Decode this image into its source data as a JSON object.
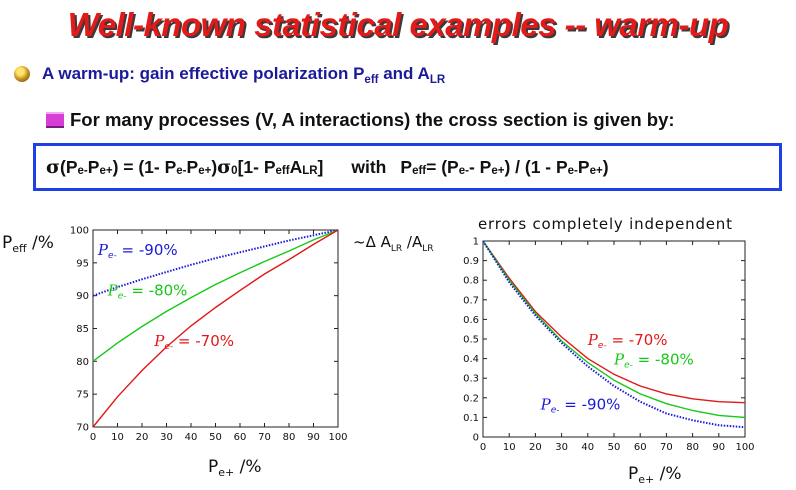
{
  "title": "Well-known statistical examples -- warm-up",
  "bullet1": {
    "icon": "gold-ball-bullet-icon",
    "text": "A warm-up: gain effective polarization P",
    "sub1": "eff",
    "mid": " and A",
    "sub2": "LR"
  },
  "bullet2": {
    "icon": "magenta-bar-bullet-icon",
    "text": "For many processes (V, A interactions) the cross section is given by:"
  },
  "formula": {
    "sigma": "σ",
    "p1": "(P",
    "s1": "e-",
    "p2": " P",
    "s2": "e+",
    "p3": ") = (1- P",
    "s3": "e-",
    "p4": " P",
    "s4": "e+",
    "p5": " ) ",
    "sigma0": "σ",
    "s0": "0",
    "p6": " [1- P",
    "s5": "eff",
    "p7": " A",
    "s6": "LR",
    "p8": "]",
    "with": "with",
    "q1": "P",
    "t1": "eff",
    "q2": " = (P",
    "t2": "e-",
    "q3": " - P",
    "t3": "e+",
    "q4": ") / (1 - P",
    "t4": "e-",
    "q5": " P",
    "t5": "e+",
    "q6": " )"
  },
  "chart_data": [
    {
      "type": "line",
      "ylabel": "Peff /%",
      "xlabel": "Pe+ /%",
      "xlim": [
        0,
        100
      ],
      "ylim": [
        70,
        100
      ],
      "xticks": [
        0,
        10,
        20,
        30,
        40,
        50,
        60,
        70,
        80,
        90,
        100
      ],
      "yticks": [
        70,
        75,
        80,
        85,
        90,
        95,
        100
      ],
      "series": [
        {
          "name": "Pe- = -90%",
          "color": "#1a1ad6",
          "style": "dotted",
          "x": [
            0,
            10,
            20,
            30,
            40,
            50,
            60,
            70,
            80,
            90,
            100
          ],
          "values": [
            90,
            91.3,
            92.5,
            93.6,
            94.7,
            95.7,
            96.6,
            97.5,
            98.4,
            99.2,
            100
          ]
        },
        {
          "name": "Pe- = -80%",
          "color": "#18c818",
          "style": "solid",
          "x": [
            0,
            10,
            20,
            30,
            40,
            50,
            60,
            70,
            80,
            90,
            100
          ],
          "values": [
            80,
            82.8,
            85.3,
            87.6,
            89.7,
            91.7,
            93.5,
            95.2,
            96.8,
            98.5,
            100
          ]
        },
        {
          "name": "Pe- = -70%",
          "color": "#e01818",
          "style": "solid",
          "x": [
            0,
            10,
            20,
            30,
            40,
            50,
            60,
            70,
            80,
            90,
            100
          ],
          "values": [
            70,
            74.6,
            78.6,
            82.2,
            85.4,
            88.2,
            90.8,
            93.3,
            95.5,
            97.8,
            100
          ]
        }
      ],
      "labels": [
        {
          "text": "Pe- = -90%",
          "color": "#1a1ad6"
        },
        {
          "text": "Pe- = -80%",
          "color": "#18c818"
        },
        {
          "text": "Pe- = -70%",
          "color": "#e01818"
        }
      ]
    },
    {
      "type": "line",
      "title": "errors completely independent",
      "ylabel": "~Δ ALR /ALR",
      "xlabel": "Pe+ /%",
      "xlim": [
        0,
        100
      ],
      "ylim": [
        0,
        1
      ],
      "xticks": [
        0,
        10,
        20,
        30,
        40,
        50,
        60,
        70,
        80,
        90,
        100
      ],
      "yticks": [
        0,
        0.1,
        0.2,
        0.3,
        0.4,
        0.5,
        0.6,
        0.7,
        0.8,
        0.9,
        1
      ],
      "series": [
        {
          "name": "Pe- = -70%",
          "color": "#e01818",
          "style": "solid",
          "x": [
            0,
            10,
            20,
            30,
            40,
            50,
            60,
            70,
            80,
            90,
            100
          ],
          "values": [
            1,
            0.81,
            0.64,
            0.51,
            0.4,
            0.32,
            0.26,
            0.22,
            0.195,
            0.18,
            0.175
          ]
        },
        {
          "name": "Pe- = -80%",
          "color": "#18c818",
          "style": "solid",
          "x": [
            0,
            10,
            20,
            30,
            40,
            50,
            60,
            70,
            80,
            90,
            100
          ],
          "values": [
            1,
            0.8,
            0.63,
            0.49,
            0.38,
            0.29,
            0.22,
            0.17,
            0.135,
            0.11,
            0.1
          ]
        },
        {
          "name": "Pe- = -90%",
          "color": "#1a1ad6",
          "style": "dotted",
          "x": [
            0,
            10,
            20,
            30,
            40,
            50,
            60,
            70,
            80,
            90,
            100
          ],
          "values": [
            1,
            0.79,
            0.62,
            0.48,
            0.36,
            0.26,
            0.18,
            0.12,
            0.085,
            0.06,
            0.05
          ]
        }
      ],
      "labels": [
        {
          "text": "Pe- = -70%",
          "color": "#e01818"
        },
        {
          "text": "Pe- = -80%",
          "color": "#18c818"
        },
        {
          "text": "Pe- = -90%",
          "color": "#1a1ad6"
        }
      ]
    }
  ]
}
